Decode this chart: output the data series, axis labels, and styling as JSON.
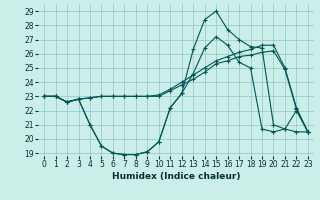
{
  "xlabel": "Humidex (Indice chaleur)",
  "bg_color": "#cceee8",
  "grid_color": "#99cccc",
  "line_color": "#005555",
  "xlim": [
    -0.5,
    23.5
  ],
  "ylim": [
    18.8,
    29.5
  ],
  "xticks": [
    0,
    1,
    2,
    3,
    4,
    5,
    6,
    7,
    8,
    9,
    10,
    11,
    12,
    13,
    14,
    15,
    16,
    17,
    18,
    19,
    20,
    21,
    22,
    23
  ],
  "yticks": [
    19,
    20,
    21,
    22,
    23,
    24,
    25,
    26,
    27,
    28,
    29
  ],
  "series1_x": [
    0,
    1,
    2,
    3,
    4,
    5,
    6,
    7,
    8,
    9,
    10,
    11,
    12,
    13,
    14,
    15,
    16,
    17,
    18,
    19,
    20,
    21,
    22,
    23
  ],
  "series1_y": [
    23,
    23,
    22.6,
    22.8,
    22.9,
    23,
    23,
    23,
    23,
    23,
    23.1,
    23.5,
    24,
    24.5,
    25,
    25.5,
    25.8,
    26.1,
    26.3,
    26.6,
    26.6,
    25,
    22.2,
    20.5
  ],
  "series2_x": [
    0,
    1,
    2,
    3,
    4,
    5,
    6,
    7,
    8,
    9,
    10,
    11,
    12,
    13,
    14,
    15,
    16,
    17,
    18,
    19,
    20,
    21,
    22,
    23
  ],
  "series2_y": [
    23,
    23,
    22.6,
    22.8,
    22.9,
    23,
    23,
    23,
    23,
    23,
    23,
    23.4,
    23.8,
    24.2,
    24.7,
    25.3,
    25.5,
    25.8,
    25.9,
    26.1,
    26.2,
    24.9,
    22.1,
    20.5
  ],
  "series3_x": [
    0,
    1,
    2,
    3,
    4,
    5,
    6,
    7,
    8,
    9,
    10,
    11,
    12,
    13,
    14,
    15,
    16,
    17,
    18,
    19,
    20,
    21,
    22,
    23
  ],
  "series3_y": [
    23,
    23,
    22.6,
    22.8,
    21,
    19.5,
    19,
    18.9,
    18.9,
    19.1,
    19.8,
    22.2,
    23.2,
    26.3,
    28.4,
    29.0,
    27.7,
    27.0,
    26.5,
    26.4,
    21,
    20.7,
    22,
    20.5
  ],
  "series4_x": [
    0,
    1,
    2,
    3,
    4,
    5,
    6,
    7,
    8,
    9,
    10,
    11,
    12,
    13,
    14,
    15,
    16,
    17,
    18,
    19,
    20,
    21,
    22,
    23
  ],
  "series4_y": [
    23,
    23,
    22.6,
    22.8,
    21,
    19.5,
    19,
    18.9,
    18.9,
    19.1,
    19.8,
    22.2,
    23.2,
    24.6,
    26.4,
    27.2,
    26.6,
    25.4,
    25.0,
    20.7,
    20.5,
    20.7,
    20.5,
    20.5
  ]
}
